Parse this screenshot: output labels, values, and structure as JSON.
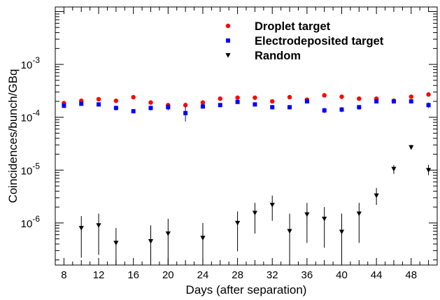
{
  "chart_data": {
    "type": "scatter",
    "xlabel": "Days (after separation)",
    "ylabel": "Coincidences/bunch/GBq",
    "xlim": [
      7,
      51
    ],
    "ylim": [
      1.6e-07,
      0.0122
    ],
    "yscale": "log",
    "x_ticks": [
      8,
      12,
      16,
      20,
      24,
      28,
      32,
      36,
      40,
      44,
      48
    ],
    "y_ticks": [
      {
        "mantissa": "10",
        "exp": "-6",
        "value": 1e-06
      },
      {
        "mantissa": "10",
        "exp": "-5",
        "value": 1e-05
      },
      {
        "mantissa": "10",
        "exp": "-4",
        "value": 0.0001
      },
      {
        "mantissa": "10",
        "exp": "-3",
        "value": 0.001
      }
    ],
    "legend_position": "top-right",
    "series": [
      {
        "name": "Droplet target",
        "color": "#ff0000",
        "marker": "circle",
        "points": [
          {
            "x": 8,
            "y": 0.000185,
            "lo": 0.00017,
            "hi": 0.0002
          },
          {
            "x": 10,
            "y": 0.000205,
            "lo": 0.00019,
            "hi": 0.00022
          },
          {
            "x": 12,
            "y": 0.00022,
            "lo": 0.000205,
            "hi": 0.000235
          },
          {
            "x": 14,
            "y": 0.000205,
            "lo": 0.00019,
            "hi": 0.00022
          },
          {
            "x": 16,
            "y": 0.00024,
            "lo": 0.000225,
            "hi": 0.000255
          },
          {
            "x": 18,
            "y": 0.00019,
            "lo": 0.000175,
            "hi": 0.000205
          },
          {
            "x": 20,
            "y": 0.00017,
            "lo": 0.000155,
            "hi": 0.000185
          },
          {
            "x": 22,
            "y": 0.00017,
            "lo": 0.00015,
            "hi": 0.00019
          },
          {
            "x": 24,
            "y": 0.00019,
            "lo": 0.000175,
            "hi": 0.000205
          },
          {
            "x": 26,
            "y": 0.000225,
            "lo": 0.00021,
            "hi": 0.00024
          },
          {
            "x": 28,
            "y": 0.000235,
            "lo": 0.00022,
            "hi": 0.00025
          },
          {
            "x": 30,
            "y": 0.000235,
            "lo": 0.00022,
            "hi": 0.00025
          },
          {
            "x": 32,
            "y": 0.0002,
            "lo": 0.000185,
            "hi": 0.000215
          },
          {
            "x": 34,
            "y": 0.00024,
            "lo": 0.00022,
            "hi": 0.00026
          },
          {
            "x": 36,
            "y": 0.000215,
            "lo": 0.0002,
            "hi": 0.00023
          },
          {
            "x": 38,
            "y": 0.00026,
            "lo": 0.00024,
            "hi": 0.00028
          },
          {
            "x": 40,
            "y": 0.000245,
            "lo": 0.00022,
            "hi": 0.00027
          },
          {
            "x": 42,
            "y": 0.000225,
            "lo": 0.000205,
            "hi": 0.000245
          },
          {
            "x": 44,
            "y": 0.000225,
            "lo": 0.00021,
            "hi": 0.00024
          },
          {
            "x": 46,
            "y": 0.000205,
            "lo": 0.00019,
            "hi": 0.00022
          },
          {
            "x": 48,
            "y": 0.000245,
            "lo": 0.000225,
            "hi": 0.000265
          },
          {
            "x": 50,
            "y": 0.00027,
            "lo": 0.00025,
            "hi": 0.00029
          }
        ]
      },
      {
        "name": "Electrodeposited target",
        "color": "#0000ff",
        "marker": "square",
        "points": [
          {
            "x": 8,
            "y": 0.000165,
            "lo": 0.00015,
            "hi": 0.00018
          },
          {
            "x": 10,
            "y": 0.00018,
            "lo": 0.000165,
            "hi": 0.000195
          },
          {
            "x": 12,
            "y": 0.000175,
            "lo": 0.00016,
            "hi": 0.00019
          },
          {
            "x": 14,
            "y": 0.00015,
            "lo": 0.000135,
            "hi": 0.000165
          },
          {
            "x": 16,
            "y": 0.00013,
            "lo": 0.000118,
            "hi": 0.000142
          },
          {
            "x": 18,
            "y": 0.00015,
            "lo": 0.000135,
            "hi": 0.000165
          },
          {
            "x": 20,
            "y": 0.000155,
            "lo": 0.000135,
            "hi": 0.000175
          },
          {
            "x": 22,
            "y": 0.00012,
            "lo": 8.3e-05,
            "hi": 0.00016
          },
          {
            "x": 24,
            "y": 0.00016,
            "lo": 0.000145,
            "hi": 0.000175
          },
          {
            "x": 26,
            "y": 0.00017,
            "lo": 0.000155,
            "hi": 0.000185
          },
          {
            "x": 28,
            "y": 0.000195,
            "lo": 0.00018,
            "hi": 0.00021
          },
          {
            "x": 30,
            "y": 0.000175,
            "lo": 0.00016,
            "hi": 0.00019
          },
          {
            "x": 32,
            "y": 0.000155,
            "lo": 0.00014,
            "hi": 0.00017
          },
          {
            "x": 34,
            "y": 0.000155,
            "lo": 0.00014,
            "hi": 0.00017
          },
          {
            "x": 36,
            "y": 0.0002,
            "lo": 0.000185,
            "hi": 0.000215
          },
          {
            "x": 38,
            "y": 0.000135,
            "lo": 0.00012,
            "hi": 0.00015
          },
          {
            "x": 40,
            "y": 0.00014,
            "lo": 0.000125,
            "hi": 0.000155
          },
          {
            "x": 42,
            "y": 0.000155,
            "lo": 0.00014,
            "hi": 0.00017
          },
          {
            "x": 44,
            "y": 0.0002,
            "lo": 0.000185,
            "hi": 0.000215
          },
          {
            "x": 46,
            "y": 0.0002,
            "lo": 0.000185,
            "hi": 0.000215
          },
          {
            "x": 48,
            "y": 0.0002,
            "lo": 0.000185,
            "hi": 0.000215
          },
          {
            "x": 50,
            "y": 0.00017,
            "lo": 0.00015,
            "hi": 0.00019
          }
        ]
      },
      {
        "name": "Random",
        "color": "#000000",
        "marker": "triangle-down",
        "points": [
          {
            "x": 10,
            "y": 8e-07,
            "lo": 2.2e-07,
            "hi": 1.35e-06
          },
          {
            "x": 12,
            "y": 9e-07,
            "lo": 2.5e-07,
            "hi": 1.5e-06
          },
          {
            "x": 14,
            "y": 4.2e-07,
            "lo": 1.6e-07,
            "hi": 8e-07
          },
          {
            "x": 18,
            "y": 4.5e-07,
            "lo": 1.6e-07,
            "hi": 9e-07
          },
          {
            "x": 20,
            "y": 6.3e-07,
            "lo": 1.6e-07,
            "hi": 1.2e-06
          },
          {
            "x": 24,
            "y": 5.2e-07,
            "lo": 1.6e-07,
            "hi": 1e-06
          },
          {
            "x": 28,
            "y": 1e-06,
            "lo": 2.9e-07,
            "hi": 1.65e-06
          },
          {
            "x": 30,
            "y": 1.55e-06,
            "lo": 6.3e-07,
            "hi": 2.4e-06
          },
          {
            "x": 32,
            "y": 2.2e-06,
            "lo": 1.1e-06,
            "hi": 3.3e-06
          },
          {
            "x": 34,
            "y": 7e-07,
            "lo": 1.6e-07,
            "hi": 1.5e-06
          },
          {
            "x": 36,
            "y": 1.45e-06,
            "lo": 4.2e-07,
            "hi": 2.4e-06
          },
          {
            "x": 38,
            "y": 1.2e-06,
            "lo": 3.4e-07,
            "hi": 2e-06
          },
          {
            "x": 40,
            "y": 6.8e-07,
            "lo": 1.6e-07,
            "hi": 1.5e-06
          },
          {
            "x": 42,
            "y": 1.5e-06,
            "lo": 4.2e-07,
            "hi": 2.4e-06
          },
          {
            "x": 44,
            "y": 3.3e-06,
            "lo": 2.2e-06,
            "hi": 4.6e-06
          },
          {
            "x": 46,
            "y": 1.05e-05,
            "lo": 8.5e-06,
            "hi": 1.25e-05
          },
          {
            "x": 48,
            "y": 2.7e-05,
            "lo": 2.45e-05,
            "hi": 3e-05
          },
          {
            "x": 50,
            "y": 1e-05,
            "lo": 8e-06,
            "hi": 1.25e-05
          }
        ]
      }
    ]
  }
}
